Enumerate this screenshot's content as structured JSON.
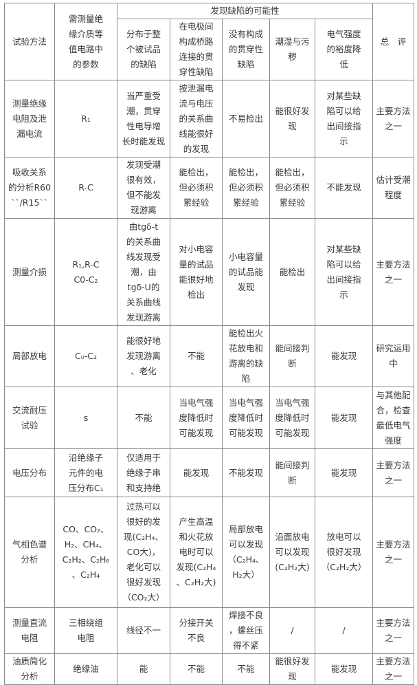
{
  "header": {
    "method": "试验方法",
    "params": "需测量绝\n缘介质等\n值电路中\n的参数",
    "group": "发现缺陷的可能性",
    "sub": [
      "分布于整\n个被试品\n的缺陷",
      "在电极间\n构成桥路\n连接的贯\n穿性缺陷",
      "没有构成\n的贯穿性\n缺陷",
      "潮湿与污\n秽",
      "电气强度\n的裕度降\n低"
    ],
    "summary": "总　评"
  },
  "rows": [
    [
      "测量绝缘\n电阻及泄\n漏电流",
      "R₁",
      "当严重受\n潮，贯穿\n性电导增\n长时能发现",
      "按泄漏电\n流与电压\n的关系曲\n线能很好\n的发现",
      "不易检出",
      "能很好发\n现",
      "对某些缺\n陷可以给\n出间接指\n示",
      "主要方法\n之一"
    ],
    [
      "吸收关系\n的分析R60\n``/R15``",
      "R-C",
      "发现受潮\n很有效，\n但不能发\n现游离",
      "能检出，\n但必须积\n累经验",
      "能检出，\n但必须积\n累经验",
      "能检出，\n但必须积\n累经验",
      "不能发现",
      "估计受潮\n程度"
    ],
    [
      "测量介损",
      "R₁,R-C\nC0-C₂",
      "由tgδ-t\n的关系曲\n线发现受\n潮，由\ntgδ-U的\n关系曲线\n发现游离",
      "对小电容\n量的试品\n能很好地\n检出",
      "小电容量\n的试品能\n发现",
      "能检出",
      "对某些缺\n陷可以给\n出间接指\n示",
      "主要方法\n之一"
    ],
    [
      "局部放电",
      "C₀-C₂",
      "能很好地\n发现游离\n、老化",
      "不能",
      "能检出火\n花放电和\n游离的缺\n陷",
      "能间接判\n断",
      "能发现",
      "研究运用\n中"
    ],
    [
      "交流耐压\n试验",
      "s",
      "不能",
      "当电气强\n度降低时\n可能发现",
      "当电气强\n度降低时\n可能发现",
      "当电气强\n度降低时\n可能发现",
      "能发现",
      "与其他配\n合，检查\n最低电气\n强度"
    ],
    [
      "电压分布",
      "沿绝缘子\n元件的电\n压分布C₁",
      "仅适用于\n绝缘子串\n和支持绝",
      "能发现",
      "不能发现",
      "能间接判\n断",
      "能发现",
      "主要方法\n之一"
    ],
    [
      "气相色谱\n分析",
      "CO、CO₂、\nH₂、CH₄、\nC₂H₂、C₂H₆\n、C₂H₄",
      "过热可以\n很好的发\n现(C₂H₄、\nCO大)，\n老化可以\n很好发现\n（CO₂大）",
      "产生高温\n和火花放\n电时可以\n发现(C₂H₄\n、C₂H₂大)",
      "局部放电\n可以发现\n（C₂H₄、\nH₂大）",
      "沿面放电\n可以发现\n(C₂H₂大)",
      "放电可以\n很好发现\n（C₂H₂大）",
      "主要方法\n之一"
    ],
    [
      "测量直流\n电阻",
      "三相绕组\n电阻",
      "线径不一",
      "分接开关\n不良",
      "焊接不良\n，螺丝压\n得不紧",
      "/",
      "/",
      "主要方法\n之一"
    ],
    [
      "油质简化\n分析",
      "绝缘油",
      "能",
      "不能",
      "不能",
      "能很好发\n现",
      "能发现",
      "主要方法\n之一"
    ]
  ]
}
